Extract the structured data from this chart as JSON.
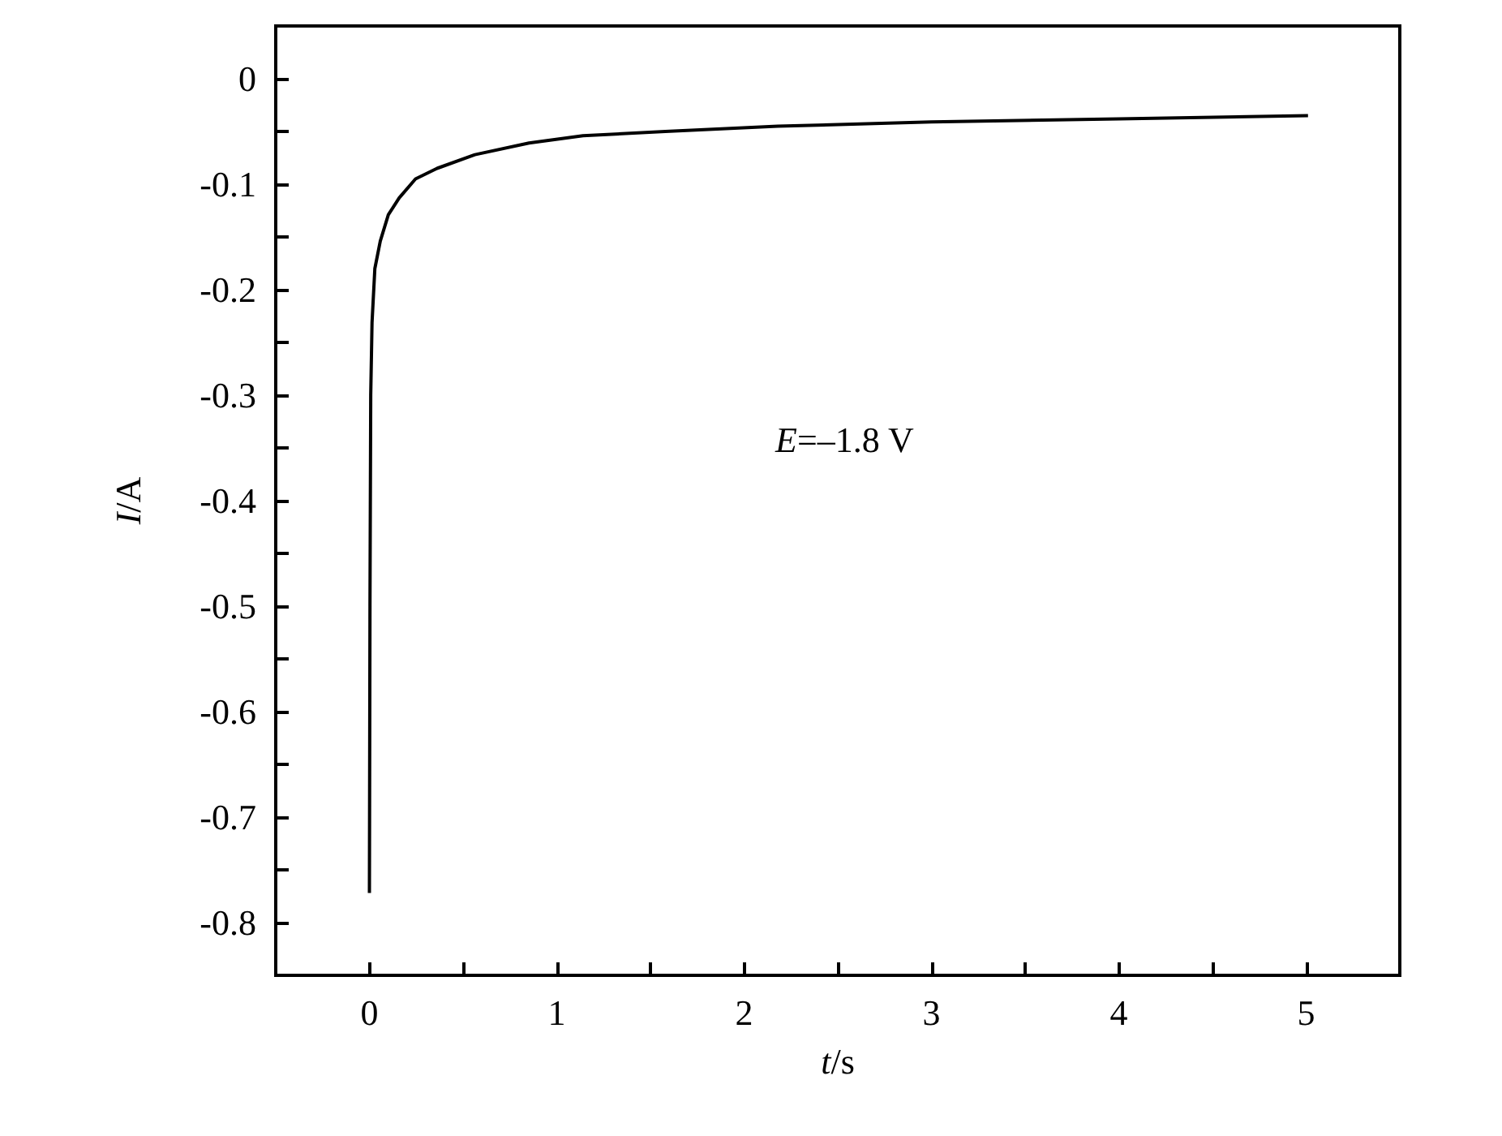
{
  "chart_data": {
    "type": "line",
    "xlabel": "t/s",
    "ylabel": "I/A",
    "annotations": [
      "E=–1.8 V"
    ],
    "xlim": [
      -0.5,
      5.5
    ],
    "xticks": [
      0,
      {
        "value": 0.5,
        "label": null
      },
      1,
      {
        "value": 1.5,
        "label": null
      },
      2,
      {
        "value": 2.5,
        "label": null
      },
      3,
      {
        "value": 3.5,
        "label": null
      },
      4,
      {
        "value": 4.5,
        "label": null
      },
      5
    ],
    "ylim": [
      -0.85,
      0.05
    ],
    "yticks": [
      0,
      {
        "value": -0.05,
        "label": null
      },
      -0.1,
      {
        "value": -0.15,
        "label": null
      },
      -0.2,
      {
        "value": -0.25,
        "label": null
      },
      -0.3,
      {
        "value": -0.35,
        "label": null
      },
      -0.4,
      {
        "value": -0.45,
        "label": null
      },
      -0.5,
      {
        "value": -0.55,
        "label": null
      },
      -0.6,
      {
        "value": -0.65,
        "label": null
      },
      -0.7,
      {
        "value": -0.75,
        "label": null
      },
      -0.8
    ],
    "grid": false,
    "marker": "none",
    "line_style": "solid",
    "series": [
      {
        "color": "#000000",
        "x": [
          0,
          0.003,
          0.007,
          0.014,
          0.029,
          0.058,
          0.101,
          0.159,
          0.246,
          0.361,
          0.563,
          0.852,
          1.14,
          1.58,
          2.18,
          3.0,
          4.0,
          5.01
        ],
        "values": [
          -0.772,
          -0.5,
          -0.3,
          -0.231,
          -0.18,
          -0.154,
          -0.129,
          -0.113,
          -0.095,
          -0.085,
          -0.072,
          -0.061,
          -0.054,
          -0.05,
          -0.045,
          -0.041,
          -0.038,
          -0.035
        ]
      }
    ]
  }
}
